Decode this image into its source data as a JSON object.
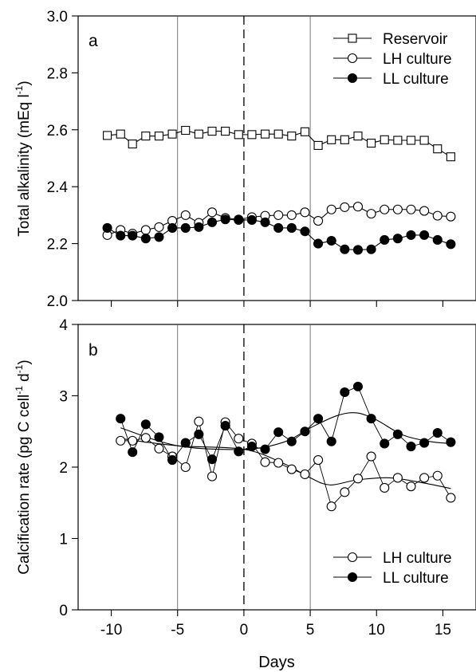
{
  "figure": {
    "xlabel": "Days",
    "xticks": [
      -10,
      -5,
      0,
      5,
      10,
      15
    ]
  },
  "colors": {
    "axis": "#000000",
    "open_marker_fill": "#ffffff",
    "filled_marker_fill": "#000000",
    "guide_line": "#555555"
  },
  "chart_data": [
    {
      "panel_label": "a",
      "type": "line",
      "xlabel": "Days",
      "ylabel": "Total alkalinity (mEq l",
      "ylabel_sup": "-1",
      "ylabel_tail": ")",
      "xlim": [
        -12.5,
        17.5
      ],
      "ylim": [
        2.0,
        3.0
      ],
      "yticks": [
        "2.0",
        "2.2",
        "2.4",
        "2.6",
        "2.8",
        "3.0"
      ],
      "grid": false,
      "legend_position": "top-right",
      "reference_lines_x": [
        -5,
        5
      ],
      "dashed_line_x": 0,
      "series": [
        {
          "name": "Reservoir",
          "marker": "open-square",
          "x": [
            -10.3,
            -9.3,
            -8.4,
            -7.4,
            -6.4,
            -5.4,
            -4.4,
            -3.4,
            -2.4,
            -1.4,
            -0.4,
            0.6,
            1.6,
            2.6,
            3.6,
            4.6,
            5.6,
            6.6,
            7.6,
            8.6,
            9.6,
            10.6,
            11.6,
            12.6,
            13.6,
            14.6,
            15.6
          ],
          "y": [
            2.58,
            2.585,
            2.55,
            2.578,
            2.578,
            2.585,
            2.598,
            2.585,
            2.595,
            2.595,
            2.583,
            2.583,
            2.585,
            2.585,
            2.578,
            2.593,
            2.545,
            2.565,
            2.565,
            2.578,
            2.553,
            2.565,
            2.563,
            2.563,
            2.563,
            2.533,
            2.505
          ]
        },
        {
          "name": "LH culture",
          "marker": "open-circle",
          "x": [
            -10.3,
            -9.3,
            -8.4,
            -7.4,
            -6.4,
            -5.4,
            -4.4,
            -3.4,
            -2.4,
            -1.4,
            -0.4,
            0.6,
            1.6,
            2.6,
            3.6,
            4.6,
            5.6,
            6.6,
            7.6,
            8.6,
            9.6,
            10.6,
            11.6,
            12.6,
            13.6,
            14.6,
            15.6
          ],
          "y": [
            2.23,
            2.248,
            2.235,
            2.248,
            2.258,
            2.28,
            2.3,
            2.273,
            2.31,
            2.29,
            2.285,
            2.293,
            2.298,
            2.3,
            2.3,
            2.31,
            2.28,
            2.32,
            2.328,
            2.33,
            2.305,
            2.32,
            2.32,
            2.32,
            2.315,
            2.298,
            2.295
          ]
        },
        {
          "name": "LL culture",
          "marker": "filled-circle",
          "x": [
            -10.3,
            -9.3,
            -8.4,
            -7.4,
            -6.4,
            -5.4,
            -4.4,
            -3.4,
            -2.4,
            -1.4,
            -0.4,
            0.6,
            1.6,
            2.6,
            3.6,
            4.6,
            5.6,
            6.6,
            7.6,
            8.6,
            9.6,
            10.6,
            11.6,
            12.6,
            13.6,
            14.6,
            15.6
          ],
          "y": [
            2.255,
            2.228,
            2.228,
            2.218,
            2.223,
            2.255,
            2.255,
            2.258,
            2.275,
            2.285,
            2.283,
            2.283,
            2.275,
            2.255,
            2.255,
            2.243,
            2.2,
            2.21,
            2.18,
            2.178,
            2.18,
            2.213,
            2.218,
            2.23,
            2.23,
            2.213,
            2.198
          ]
        }
      ]
    },
    {
      "panel_label": "b",
      "type": "line",
      "xlabel": "Days",
      "ylabel": "Calcification rate (pg C cell",
      "ylabel_sup": "-1",
      "ylabel_mid": " d",
      "ylabel_sup2": "-1",
      "ylabel_tail": ")",
      "xlim": [
        -12.5,
        17.5
      ],
      "ylim": [
        0,
        4
      ],
      "yticks": [
        "0",
        "1",
        "2",
        "3",
        "4"
      ],
      "grid": false,
      "legend_position": "bottom-right",
      "reference_lines_x": [
        -5,
        5
      ],
      "dashed_line_x": 0,
      "series": [
        {
          "name": "LH culture",
          "marker": "open-circle",
          "x": [
            -9.3,
            -8.4,
            -7.4,
            -6.4,
            -5.4,
            -4.4,
            -3.4,
            -2.4,
            -1.4,
            -0.4,
            0.6,
            1.6,
            2.6,
            3.6,
            4.6,
            5.6,
            6.6,
            7.6,
            8.6,
            9.6,
            10.6,
            11.6,
            12.6,
            13.6,
            14.6,
            15.6
          ],
          "y": [
            2.37,
            2.37,
            2.41,
            2.26,
            2.15,
            2.0,
            2.64,
            1.87,
            2.63,
            2.4,
            2.33,
            2.07,
            2.06,
            1.97,
            1.9,
            2.1,
            1.45,
            1.65,
            1.84,
            2.15,
            1.71,
            1.85,
            1.73,
            1.85,
            1.88,
            1.57
          ],
          "trend": [
            [
              -9.3,
              2.4
            ],
            [
              -5,
              2.3
            ],
            [
              0,
              2.25
            ],
            [
              3,
              2.05
            ],
            [
              5,
              1.85
            ],
            [
              6.5,
              1.75
            ],
            [
              8.5,
              1.82
            ],
            [
              11,
              1.85
            ],
            [
              13.5,
              1.78
            ],
            [
              15.6,
              1.7
            ]
          ]
        },
        {
          "name": "LL culture",
          "marker": "filled-circle",
          "x": [
            -9.3,
            -8.4,
            -7.4,
            -6.4,
            -5.4,
            -4.4,
            -3.4,
            -2.4,
            -1.4,
            -0.4,
            0.6,
            1.6,
            2.6,
            3.6,
            4.6,
            5.6,
            6.6,
            7.6,
            8.6,
            9.6,
            10.6,
            11.6,
            12.6,
            13.6,
            14.6,
            15.6
          ],
          "y": [
            2.68,
            2.21,
            2.6,
            2.42,
            2.1,
            2.34,
            2.46,
            2.11,
            2.58,
            2.22,
            2.29,
            2.25,
            2.49,
            2.36,
            2.5,
            2.68,
            2.36,
            3.05,
            3.13,
            2.68,
            2.33,
            2.46,
            2.29,
            2.34,
            2.48,
            2.35
          ],
          "trend": [
            [
              -9.3,
              2.55
            ],
            [
              -5,
              2.3
            ],
            [
              0,
              2.25
            ],
            [
              3,
              2.35
            ],
            [
              5,
              2.55
            ],
            [
              7,
              2.72
            ],
            [
              8.5,
              2.76
            ],
            [
              10,
              2.66
            ],
            [
              12,
              2.45
            ],
            [
              14,
              2.36
            ],
            [
              15.6,
              2.33
            ]
          ]
        }
      ]
    }
  ]
}
